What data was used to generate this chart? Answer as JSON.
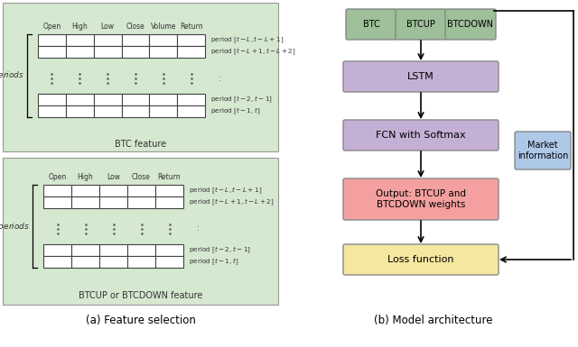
{
  "fig_width": 6.4,
  "fig_height": 3.85,
  "dpi": 100,
  "bg_color": "#ffffff",
  "green_bg": "#d5e8d0",
  "green_box": "#9ebf99",
  "purple_box": "#c5b0d5",
  "red_box": "#f4a0a0",
  "yellow_box": "#f5e6a0",
  "blue_box": "#aec8e8",
  "btc_cols": [
    "Open",
    "High",
    "Low",
    "Close",
    "Volume",
    "Return"
  ],
  "btcup_cols": [
    "Open",
    "High",
    "Low",
    "Close",
    "Return"
  ],
  "period_top1": "period $[t-L, t-L+1]$",
  "period_top2": "period $[t-L+1, t-L+2]$",
  "period_bot1": "period $[t-2, t-1]$",
  "period_bot2": "period $[t-1, t]$",
  "l_label": "$L$ periods",
  "btc_label": "BTC feature",
  "btcup_label": "BTCUP or BTCDOWN feature",
  "caption_a": "(a) Feature selection",
  "caption_b": "(b) Model architecture",
  "inp_labels": [
    "BTC",
    "BTCUP",
    "BTCDOWN"
  ],
  "lstm_label": "LSTM",
  "fcn_label": "FCN with Softmax",
  "out_label": "Output: BTCUP and\nBTCDOWN weights",
  "loss_label": "Loss function",
  "mkt_label": "Market\ninformation"
}
